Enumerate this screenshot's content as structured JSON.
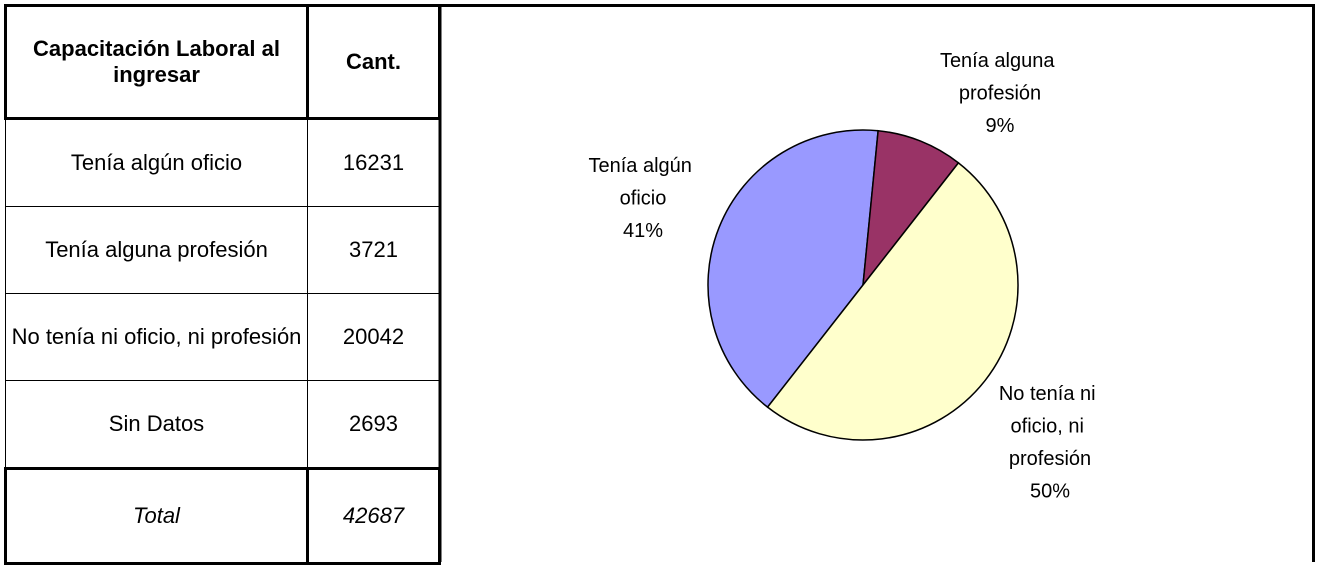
{
  "table": {
    "header": [
      "Capacitación Laboral al ingresar",
      "Cant."
    ],
    "rows": [
      [
        "Tenía algún oficio",
        16231
      ],
      [
        "Tenía alguna profesión",
        3721
      ],
      [
        "No tenía ni oficio, ni profesión",
        20042
      ],
      [
        "Sin Datos",
        2693
      ]
    ],
    "total": [
      "Total",
      42687
    ]
  },
  "chart_data": {
    "type": "pie",
    "categories": [
      "Tenía algún oficio",
      "Tenía alguna profesión",
      "No tenía ni oficio, ni profesión"
    ],
    "values": [
      41,
      9,
      50
    ],
    "value_labels": [
      "41%",
      "9%",
      "50%"
    ],
    "colors": [
      "#9999ff",
      "#993366",
      "#ffffcc"
    ]
  }
}
